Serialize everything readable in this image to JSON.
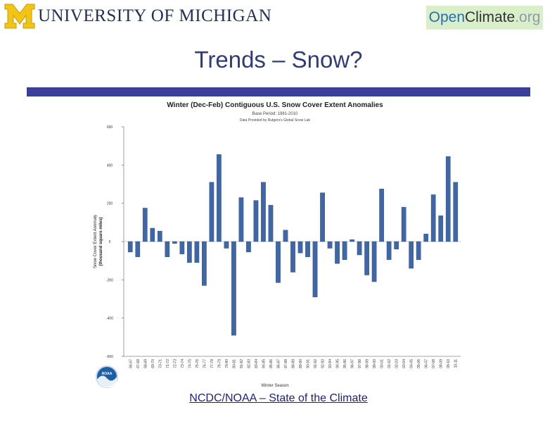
{
  "header": {
    "university_logo_text": "UNIVERSITY OF MICHIGAN",
    "openclimate_logo": {
      "part1": "Open",
      "part2": "Climate",
      "part3": ".org"
    }
  },
  "slide": {
    "title": "Trends – Snow?",
    "source_link": "NCDC/NOAA – State of the Climate"
  },
  "colors": {
    "bar": "#3f67a8",
    "title_bar": "#3b3f9a",
    "title_text": "#2f3c78"
  },
  "chart_data": {
    "type": "bar",
    "title": "Winter (Dec-Feb) Contiguous U.S. Snow Cover Extent Anomalies",
    "subtitle_1": "Base Period: 1981-2010",
    "subtitle_2": "Data Provided by Rutgers's Global Snow Lab",
    "xlabel": "Winter Season",
    "ylabel_1": "Snow Cover Extent Anomaly",
    "ylabel_2": "(thousand square miles)",
    "ylim": [
      -600,
      600
    ],
    "yticks": [
      -600,
      -400,
      -200,
      0,
      200,
      400,
      600
    ],
    "ytick_labels": [
      "-600",
      "-400",
      "-200",
      "0",
      "200",
      "400",
      "600"
    ],
    "logo_label": "NOAA",
    "categories": [
      "66-67",
      "67-68",
      "68-69",
      "69-70",
      "70-71",
      "71-72",
      "72-73",
      "73-74",
      "74-75",
      "75-76",
      "76-77",
      "77-78",
      "78-79",
      "79-80",
      "80-81",
      "81-82",
      "82-83",
      "83-84",
      "84-85",
      "85-86",
      "86-87",
      "87-88",
      "88-89",
      "89-90",
      "90-91",
      "91-92",
      "92-93",
      "93-94",
      "94-95",
      "95-96",
      "96-97",
      "97-98",
      "98-99",
      "99-00",
      "00-01",
      "01-02",
      "02-03",
      "03-04",
      "04-05",
      "05-06",
      "06-07",
      "07-08",
      "08-09",
      "09-10",
      "10-11"
    ],
    "values": [
      -55,
      -80,
      175,
      70,
      55,
      -80,
      -10,
      -65,
      -110,
      -110,
      -230,
      310,
      455,
      -35,
      -490,
      230,
      -55,
      215,
      310,
      190,
      -215,
      60,
      -160,
      -60,
      -80,
      -290,
      255,
      -35,
      -115,
      -95,
      10,
      -70,
      -175,
      -210,
      275,
      -95,
      -40,
      180,
      -140,
      -95,
      40,
      245,
      135,
      445,
      310
    ]
  }
}
